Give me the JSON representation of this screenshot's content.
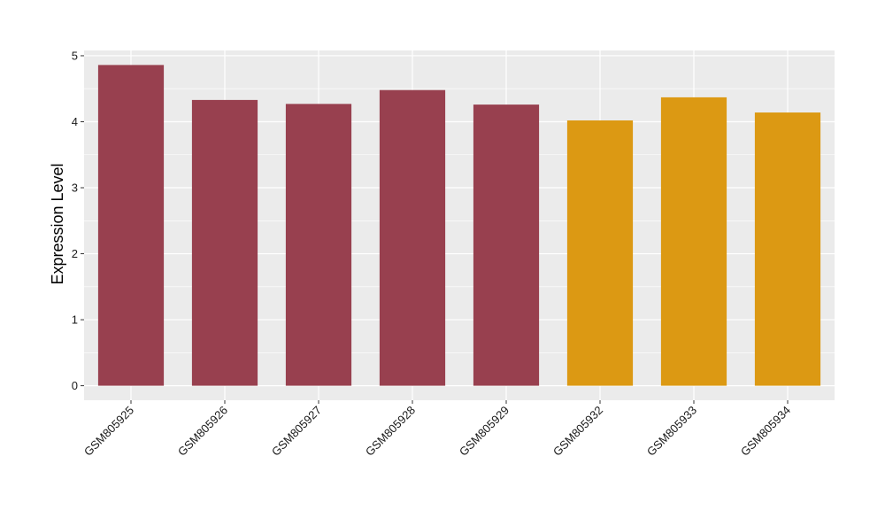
{
  "chart_data": {
    "type": "bar",
    "title": "",
    "xlabel": "",
    "ylabel": "Expression Level",
    "ylim": [
      -0.22,
      5.08
    ],
    "yticks": [
      0,
      1,
      2,
      3,
      4,
      5
    ],
    "grid": true,
    "categories": [
      "GSM805925",
      "GSM805926",
      "GSM805927",
      "GSM805928",
      "GSM805929",
      "GSM805932",
      "GSM805933",
      "GSM805934"
    ],
    "values": [
      4.86,
      4.33,
      4.27,
      4.48,
      4.26,
      4.02,
      4.37,
      4.14
    ],
    "bar_colors": [
      "#98404f",
      "#98404f",
      "#98404f",
      "#98404f",
      "#98404f",
      "#dc9913",
      "#dc9913",
      "#dc9913"
    ],
    "panel_background": "#ebebeb",
    "grid_color": "#ffffff"
  }
}
